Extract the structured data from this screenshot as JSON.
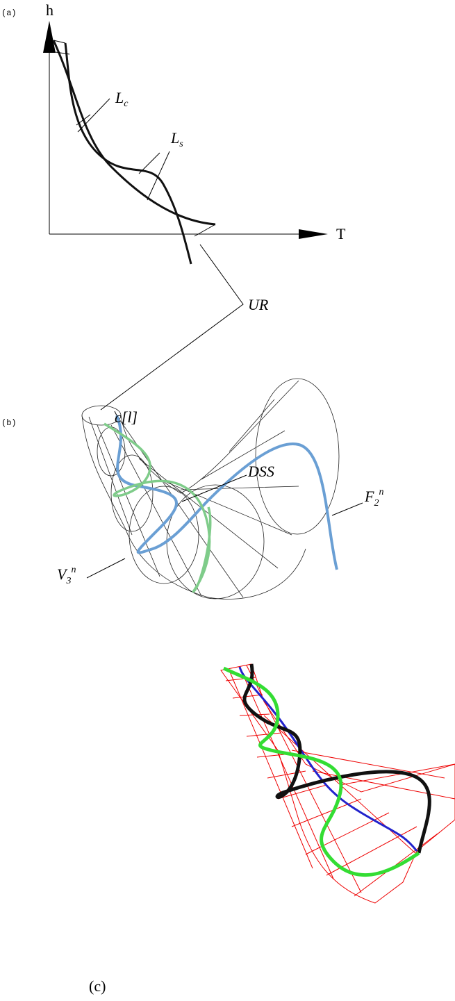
{
  "panels": [
    {
      "label": "(a)",
      "y_axis_label": "h",
      "x_axis_label": "T",
      "curve_labels": [
        {
          "base": "L",
          "sub": "c"
        },
        {
          "base": "L",
          "sub": "s"
        }
      ],
      "annotation": "UR"
    },
    {
      "label": "(b)",
      "annotations": [
        {
          "text": "c[l]"
        },
        {
          "text": "DSS"
        },
        {
          "base": "F",
          "sub": "2",
          "sup": "n"
        },
        {
          "base": "V",
          "sub": "3",
          "sup": "n"
        }
      ]
    },
    {
      "label": "(c)"
    }
  ]
}
